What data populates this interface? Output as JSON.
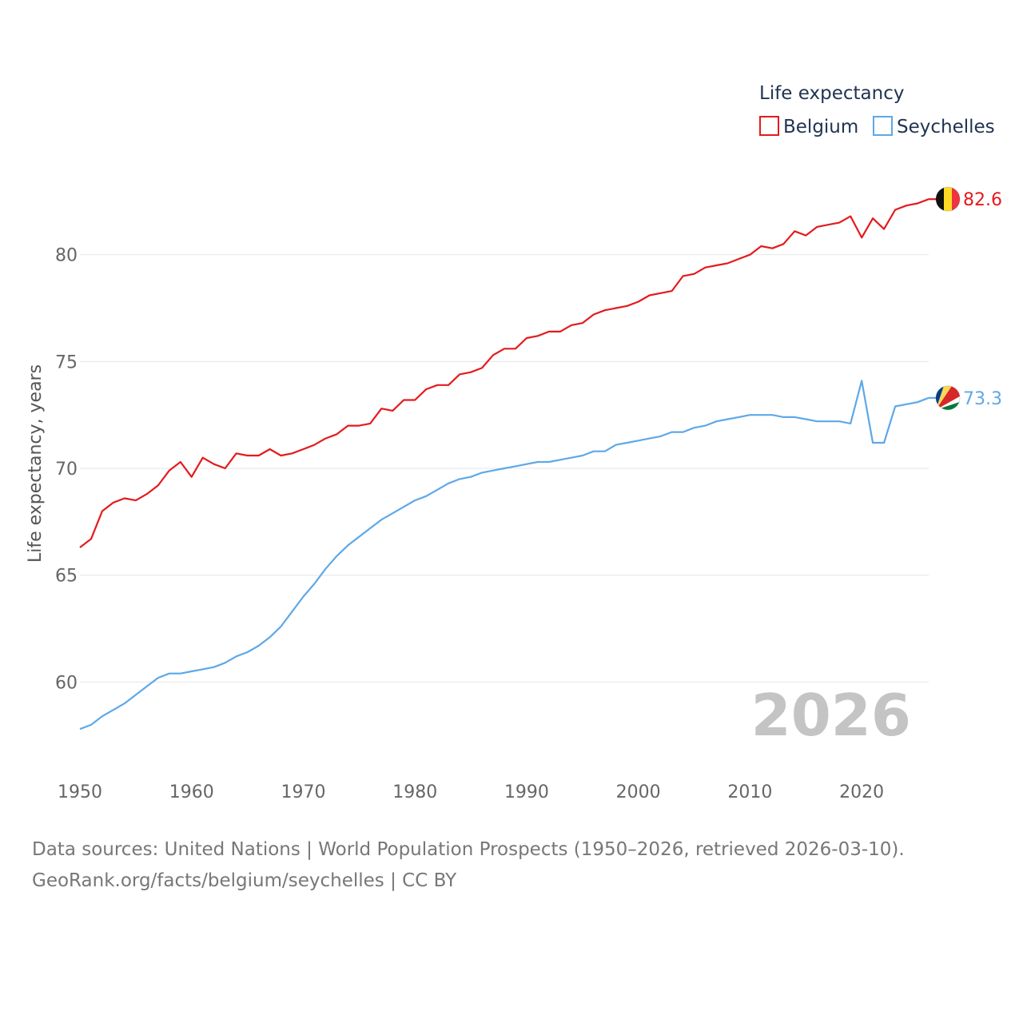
{
  "chart_data": {
    "type": "line",
    "legend_title": "Life expectancy",
    "ylabel": "Life expectancy, years",
    "xlabel": "",
    "xlim": [
      1950,
      2026
    ],
    "ylim": [
      56.2,
      85.0
    ],
    "x_ticks": [
      1950,
      1960,
      1970,
      1980,
      1990,
      2000,
      2010,
      2020
    ],
    "y_ticks": [
      60,
      65,
      70,
      75,
      80
    ],
    "year_label": "2026",
    "legend_position": "top-right",
    "series": [
      {
        "name": "Belgium",
        "color": "#e41a1c",
        "end_label": "82.6",
        "flag_icon": "belgium-flag-icon",
        "x": [
          1950,
          1951,
          1952,
          1953,
          1954,
          1955,
          1956,
          1957,
          1958,
          1959,
          1960,
          1961,
          1962,
          1963,
          1964,
          1965,
          1966,
          1967,
          1968,
          1969,
          1970,
          1971,
          1972,
          1973,
          1974,
          1975,
          1976,
          1977,
          1978,
          1979,
          1980,
          1981,
          1982,
          1983,
          1984,
          1985,
          1986,
          1987,
          1988,
          1989,
          1990,
          1991,
          1992,
          1993,
          1994,
          1995,
          1996,
          1997,
          1998,
          1999,
          2000,
          2001,
          2002,
          2003,
          2004,
          2005,
          2006,
          2007,
          2008,
          2009,
          2010,
          2011,
          2012,
          2013,
          2014,
          2015,
          2016,
          2017,
          2018,
          2019,
          2020,
          2021,
          2022,
          2023,
          2024,
          2025,
          2026
        ],
        "values": [
          66.3,
          66.7,
          68.0,
          68.4,
          68.6,
          68.5,
          68.8,
          69.2,
          69.9,
          70.3,
          69.6,
          70.5,
          70.2,
          70.0,
          70.7,
          70.6,
          70.6,
          70.9,
          70.6,
          70.7,
          70.9,
          71.1,
          71.4,
          71.6,
          72.0,
          72.0,
          72.1,
          72.8,
          72.7,
          73.2,
          73.2,
          73.7,
          73.9,
          73.9,
          74.4,
          74.5,
          74.7,
          75.3,
          75.6,
          75.6,
          76.1,
          76.2,
          76.4,
          76.4,
          76.7,
          76.8,
          77.2,
          77.4,
          77.5,
          77.6,
          77.8,
          78.1,
          78.2,
          78.3,
          79.0,
          79.1,
          79.4,
          79.5,
          79.6,
          79.8,
          80.0,
          80.4,
          80.3,
          80.5,
          81.1,
          80.9,
          81.3,
          81.4,
          81.5,
          81.8,
          80.8,
          81.7,
          81.2,
          82.1,
          82.3,
          82.4,
          82.6
        ]
      },
      {
        "name": "Seychelles",
        "color": "#5ea8e8",
        "end_label": "73.3",
        "flag_icon": "seychelles-flag-icon",
        "x": [
          1950,
          1951,
          1952,
          1953,
          1954,
          1955,
          1956,
          1957,
          1958,
          1959,
          1960,
          1961,
          1962,
          1963,
          1964,
          1965,
          1966,
          1967,
          1968,
          1969,
          1970,
          1971,
          1972,
          1973,
          1974,
          1975,
          1976,
          1977,
          1978,
          1979,
          1980,
          1981,
          1982,
          1983,
          1984,
          1985,
          1986,
          1987,
          1988,
          1989,
          1990,
          1991,
          1992,
          1993,
          1994,
          1995,
          1996,
          1997,
          1998,
          1999,
          2000,
          2001,
          2002,
          2003,
          2004,
          2005,
          2006,
          2007,
          2008,
          2009,
          2010,
          2011,
          2012,
          2013,
          2014,
          2015,
          2016,
          2017,
          2018,
          2019,
          2020,
          2021,
          2022,
          2023,
          2024,
          2025,
          2026
        ],
        "values": [
          57.8,
          58.0,
          58.4,
          58.7,
          59.0,
          59.4,
          59.8,
          60.2,
          60.4,
          60.4,
          60.5,
          60.6,
          60.7,
          60.9,
          61.2,
          61.4,
          61.7,
          62.1,
          62.6,
          63.3,
          64.0,
          64.6,
          65.3,
          65.9,
          66.4,
          66.8,
          67.2,
          67.6,
          67.9,
          68.2,
          68.5,
          68.7,
          69.0,
          69.3,
          69.5,
          69.6,
          69.8,
          69.9,
          70.0,
          70.1,
          70.2,
          70.3,
          70.3,
          70.4,
          70.5,
          70.6,
          70.8,
          70.8,
          71.1,
          71.2,
          71.3,
          71.4,
          71.5,
          71.7,
          71.7,
          71.9,
          72.0,
          72.2,
          72.3,
          72.4,
          72.5,
          72.5,
          72.5,
          72.4,
          72.4,
          72.3,
          72.2,
          72.2,
          72.2,
          72.1,
          74.1,
          71.2,
          71.2,
          72.9,
          73.0,
          73.1,
          73.3
        ]
      }
    ]
  },
  "footer": {
    "source_line": "Data sources: United Nations | World Population Prospects (1950–2026, retrieved 2026-03-10).",
    "attribution_line": "GeoRank.org/facts/belgium/seychelles | CC BY"
  }
}
